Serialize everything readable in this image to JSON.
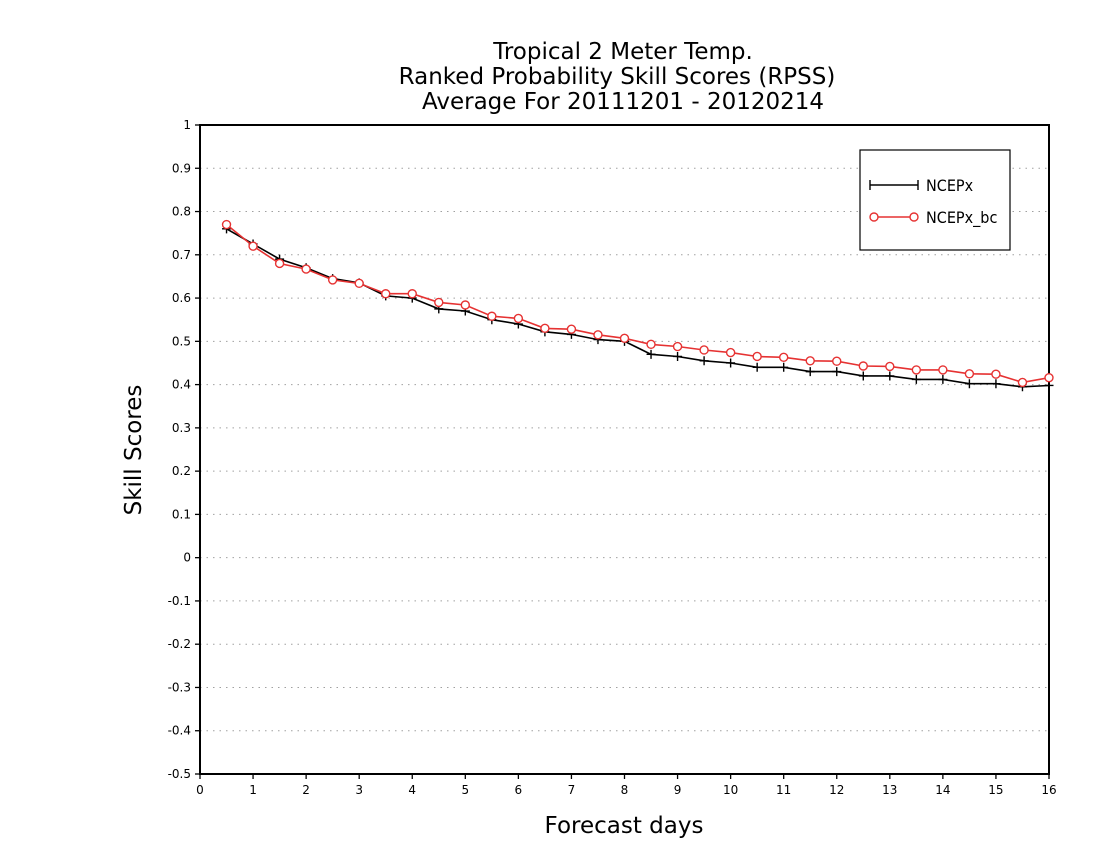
{
  "chart_data": {
    "type": "line",
    "title": [
      "Tropical 2 Meter Temp.",
      "Ranked Probability Skill Scores (RPSS)",
      "Average For 20111201 - 20120214"
    ],
    "xlabel": "Forecast days",
    "ylabel": "Skill Scores",
    "xlim": [
      0,
      16
    ],
    "ylim": [
      -0.5,
      1
    ],
    "xticks": [
      "0",
      "1",
      "2",
      "3",
      "4",
      "5",
      "6",
      "7",
      "8",
      "9",
      "10",
      "11",
      "12",
      "13",
      "14",
      "15",
      "16"
    ],
    "yticks": [
      "1",
      "0.9",
      "0.8",
      "0.7",
      "0.6",
      "0.5",
      "0.4",
      "0.3",
      "0.2",
      "0.1",
      "0",
      "-0.1",
      "-0.2",
      "-0.3",
      "-0.4",
      "-0.5"
    ],
    "grid": "horizontal dotted",
    "legend_position": "top-right",
    "x": [
      0.5,
      1,
      1.5,
      2,
      2.5,
      3,
      3.5,
      4,
      4.5,
      5,
      5.5,
      6,
      6.5,
      7,
      7.5,
      8,
      8.5,
      9,
      9.5,
      10,
      10.5,
      11,
      11.5,
      12,
      12.5,
      13,
      13.5,
      14,
      14.5,
      15,
      15.5,
      16
    ],
    "series": [
      {
        "name": "NCEPx",
        "color": "#000000",
        "marker": "plus",
        "values": [
          0.76,
          0.725,
          0.69,
          0.67,
          0.645,
          0.635,
          0.605,
          0.6,
          0.575,
          0.57,
          0.55,
          0.54,
          0.522,
          0.516,
          0.504,
          0.5,
          0.47,
          0.465,
          0.455,
          0.45,
          0.44,
          0.44,
          0.43,
          0.43,
          0.42,
          0.42,
          0.412,
          0.412,
          0.402,
          0.402,
          0.395,
          0.398
        ]
      },
      {
        "name": "NCEPx_bc",
        "color": "#e63232",
        "marker": "circle",
        "values": [
          0.77,
          0.72,
          0.68,
          0.667,
          0.642,
          0.634,
          0.61,
          0.61,
          0.59,
          0.584,
          0.558,
          0.553,
          0.53,
          0.528,
          0.515,
          0.507,
          0.493,
          0.488,
          0.48,
          0.474,
          0.465,
          0.463,
          0.455,
          0.454,
          0.443,
          0.442,
          0.434,
          0.434,
          0.425,
          0.424,
          0.405,
          0.416
        ]
      }
    ]
  }
}
